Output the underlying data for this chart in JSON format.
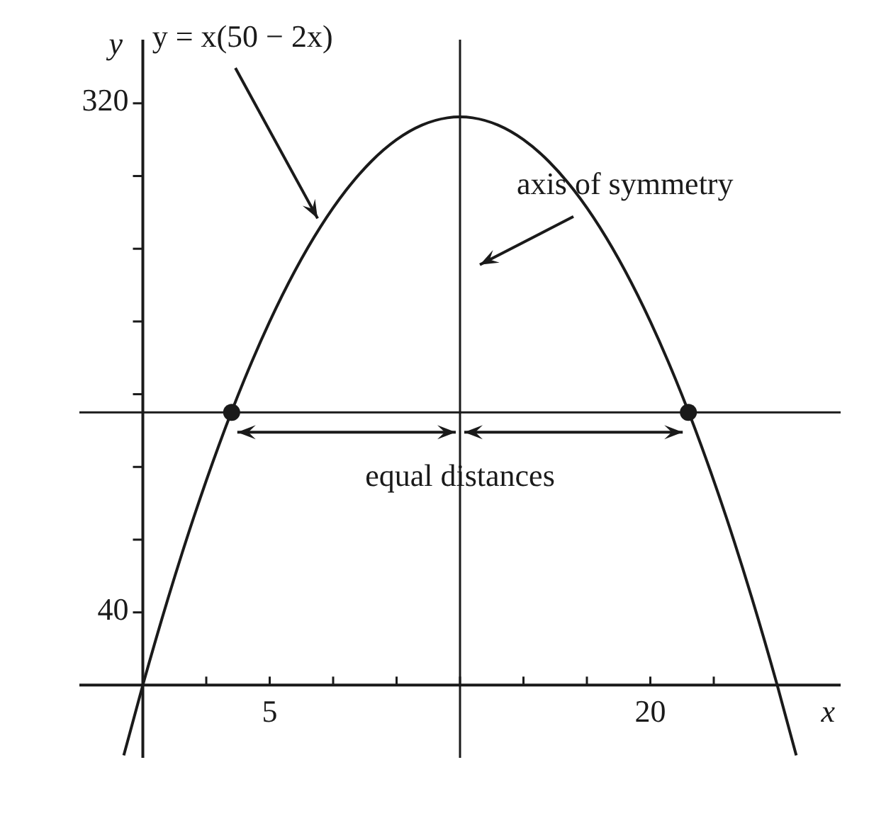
{
  "chart_data": {
    "type": "line",
    "xlabel": "x",
    "ylabel": "y",
    "xlim": [
      -2.5,
      27.5
    ],
    "ylim": [
      -40,
      355
    ],
    "xticks": [
      {
        "value": 2.5,
        "label": null
      },
      5,
      {
        "value": 7.5,
        "label": null
      },
      {
        "value": 10,
        "label": null
      },
      {
        "value": 12.5,
        "label": null
      },
      {
        "value": 15,
        "label": null
      },
      {
        "value": 17.5,
        "label": null
      },
      20,
      {
        "value": 22.5,
        "label": null
      }
    ],
    "yticks": [
      40,
      {
        "value": 80,
        "label": null
      },
      {
        "value": 120,
        "label": null
      },
      {
        "value": 160,
        "label": null
      },
      {
        "value": 200,
        "label": null
      },
      {
        "value": 240,
        "label": null
      },
      {
        "value": 280,
        "label": null
      },
      320
    ],
    "grid": false,
    "series": [
      {
        "color": "#1a1a1a",
        "x": [
          -0.75,
          0,
          1,
          2,
          3,
          4,
          5,
          6,
          7,
          8,
          9,
          10,
          11,
          12,
          12.5,
          13,
          14,
          15,
          16,
          17,
          18,
          19,
          20,
          21,
          22,
          23,
          24,
          25,
          25.75
        ],
        "values": [
          -38.6,
          0,
          48,
          92,
          132,
          168,
          200,
          228,
          252,
          272,
          288,
          300,
          308,
          312,
          312.5,
          312,
          308,
          300,
          288,
          272,
          252,
          228,
          200,
          168,
          132,
          92,
          48,
          0,
          -38.6
        ]
      },
      {
        "type": "scatter",
        "color": "#1a1a1a",
        "marker": "circle",
        "x": [
          3.5,
          21.5
        ],
        "values": [
          150,
          150
        ]
      }
    ],
    "ref_lines": [
      {
        "axis": "x",
        "value": 12.5
      },
      {
        "axis": "y",
        "value": 150
      }
    ],
    "annotations": [
      {
        "text": "y = x(50 − 2x)",
        "x": 7,
        "y": 252
      },
      "axis of symmetry",
      "equal distances"
    ]
  }
}
